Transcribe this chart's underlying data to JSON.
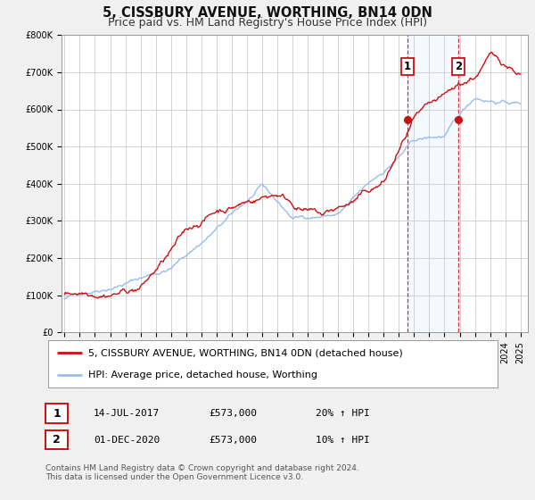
{
  "title": "5, CISSBURY AVENUE, WORTHING, BN14 0DN",
  "subtitle": "Price paid vs. HM Land Registry's House Price Index (HPI)",
  "bg_color": "#f0f0f0",
  "plot_bg_color": "#ffffff",
  "grid_color": "#cccccc",
  "red_line_color": "#cc1111",
  "blue_line_color": "#99bbee",
  "ylim": [
    0,
    800000
  ],
  "yticks": [
    0,
    100000,
    200000,
    300000,
    400000,
    500000,
    600000,
    700000,
    800000
  ],
  "ytick_labels": [
    "£0",
    "£100K",
    "£200K",
    "£300K",
    "£400K",
    "£500K",
    "£600K",
    "£700K",
    "£800K"
  ],
  "xmin": 1994.8,
  "xmax": 2025.5,
  "xticks": [
    1995,
    1996,
    1997,
    1998,
    1999,
    2000,
    2001,
    2002,
    2003,
    2004,
    2005,
    2006,
    2007,
    2008,
    2009,
    2010,
    2011,
    2012,
    2013,
    2014,
    2015,
    2016,
    2017,
    2018,
    2019,
    2020,
    2021,
    2022,
    2023,
    2024,
    2025
  ],
  "marker1_x": 2017.54,
  "marker1_y": 573000,
  "marker2_x": 2020.92,
  "marker2_y": 573000,
  "vline1_x": 2017.54,
  "vline2_x": 2020.92,
  "shade_x1": 2017.54,
  "shade_x2": 2020.92,
  "legend_label_red": "5, CISSBURY AVENUE, WORTHING, BN14 0DN (detached house)",
  "legend_label_blue": "HPI: Average price, detached house, Worthing",
  "table_row1": [
    "1",
    "14-JUL-2017",
    "£573,000",
    "20% ↑ HPI"
  ],
  "table_row2": [
    "2",
    "01-DEC-2020",
    "£573,000",
    "10% ↑ HPI"
  ],
  "footer_text": "Contains HM Land Registry data © Crown copyright and database right 2024.\nThis data is licensed under the Open Government Licence v3.0.",
  "title_fontsize": 10.5,
  "subtitle_fontsize": 9,
  "tick_fontsize": 7,
  "legend_fontsize": 8,
  "footer_fontsize": 6.5
}
